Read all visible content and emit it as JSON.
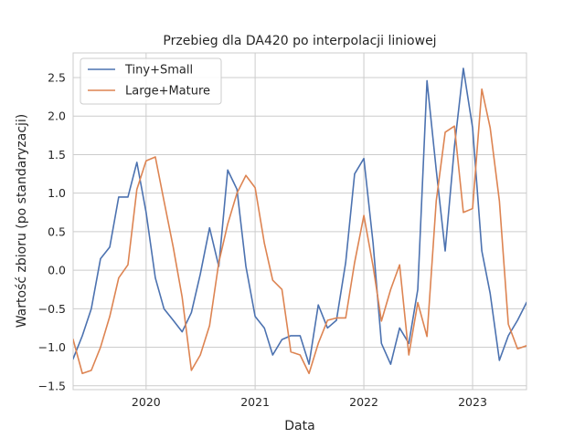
{
  "chart_data": {
    "type": "line",
    "title": "Przebieg dla DA420 po interpolacji liniowej",
    "xlabel": "Data",
    "ylabel": "Wartość zbioru (po standaryzacji)",
    "xlim": [
      "2019-05-01",
      "2023-07-01"
    ],
    "ylim": [
      -1.55,
      2.82
    ],
    "grid": true,
    "legend_position": "top-left",
    "x_ticks": [
      {
        "label": "2020",
        "date": "2020-01-01"
      },
      {
        "label": "2021",
        "date": "2021-01-01"
      },
      {
        "label": "2022",
        "date": "2022-01-01"
      },
      {
        "label": "2023",
        "date": "2023-01-01"
      }
    ],
    "y_ticks": [
      {
        "label": "−1.5",
        "value": -1.5
      },
      {
        "label": "−1.0",
        "value": -1.0
      },
      {
        "label": "−0.5",
        "value": -0.5
      },
      {
        "label": "0.0",
        "value": 0.0
      },
      {
        "label": "0.5",
        "value": 0.5
      },
      {
        "label": "1.0",
        "value": 1.0
      },
      {
        "label": "1.5",
        "value": 1.5
      },
      {
        "label": "2.0",
        "value": 2.0
      },
      {
        "label": "2.5",
        "value": 2.5
      }
    ],
    "x": [
      "2019-05-01",
      "2019-06-01",
      "2019-07-01",
      "2019-08-01",
      "2019-09-01",
      "2019-10-01",
      "2019-11-01",
      "2019-12-01",
      "2020-01-01",
      "2020-02-01",
      "2020-03-01",
      "2020-04-01",
      "2020-05-01",
      "2020-06-01",
      "2020-07-01",
      "2020-08-01",
      "2020-09-01",
      "2020-10-01",
      "2020-11-01",
      "2020-12-01",
      "2021-01-01",
      "2021-02-01",
      "2021-03-01",
      "2021-04-01",
      "2021-05-01",
      "2021-06-01",
      "2021-07-01",
      "2021-08-01",
      "2021-09-01",
      "2021-10-01",
      "2021-11-01",
      "2021-12-01",
      "2022-01-01",
      "2022-02-01",
      "2022-03-01",
      "2022-04-01",
      "2022-05-01",
      "2022-06-01",
      "2022-07-01",
      "2022-08-01",
      "2022-09-01",
      "2022-10-01",
      "2022-11-01",
      "2022-12-01",
      "2023-01-01",
      "2023-02-01",
      "2023-03-01",
      "2023-04-01",
      "2023-05-01",
      "2023-06-01",
      "2023-07-01"
    ],
    "series": [
      {
        "name": "Tiny+Small",
        "color": "#4c72b0",
        "values": [
          -1.15,
          -0.85,
          -0.5,
          0.15,
          0.3,
          0.95,
          0.95,
          1.4,
          0.75,
          -0.1,
          -0.5,
          -0.65,
          -0.8,
          -0.55,
          -0.05,
          0.55,
          0.05,
          1.3,
          1.05,
          0.05,
          -0.6,
          -0.75,
          -1.1,
          -0.9,
          -0.85,
          -0.85,
          -1.22,
          -0.45,
          -0.75,
          -0.65,
          0.1,
          1.25,
          1.45,
          0.35,
          -0.95,
          -1.22,
          -0.75,
          -0.95,
          -0.25,
          2.46,
          1.3,
          0.25,
          1.6,
          2.62,
          1.85,
          0.25,
          -0.3,
          -1.17,
          -0.85,
          -0.65,
          -0.42
        ]
      },
      {
        "name": "Large+Mature",
        "color": "#dd8452",
        "values": [
          -0.9,
          -1.34,
          -1.3,
          -1.0,
          -0.6,
          -0.1,
          0.07,
          1.05,
          1.42,
          1.47,
          0.9,
          0.3,
          -0.35,
          -1.3,
          -1.1,
          -0.72,
          0.1,
          0.6,
          1.0,
          1.23,
          1.07,
          0.35,
          -0.13,
          -0.25,
          -1.06,
          -1.1,
          -1.34,
          -0.95,
          -0.65,
          -0.62,
          -0.62,
          0.1,
          0.71,
          0.05,
          -0.66,
          -0.25,
          0.07,
          -1.1,
          -0.42,
          -0.86,
          0.9,
          1.79,
          1.87,
          0.75,
          0.8,
          2.35,
          1.85,
          0.9,
          -0.7,
          -1.02,
          -0.98
        ]
      }
    ]
  }
}
